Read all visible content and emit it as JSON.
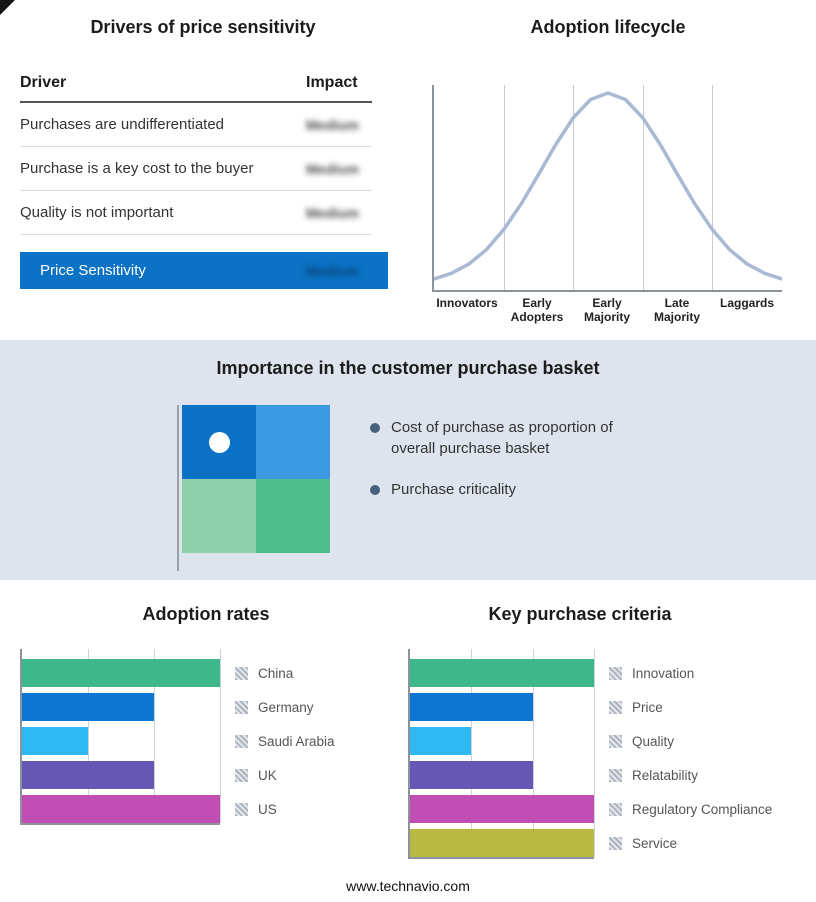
{
  "drivers": {
    "title": "Drivers of price sensitivity",
    "col_driver": "Driver",
    "col_impact": "Impact",
    "rows": [
      {
        "label": "Purchases are undifferentiated",
        "impact": "Medium"
      },
      {
        "label": "Purchase is a key cost to the buyer",
        "impact": "Medium"
      },
      {
        "label": "Quality is not important",
        "impact": "Medium"
      }
    ],
    "highlight": {
      "label": "Price Sensitivity",
      "impact": "Medium",
      "color": "#0b72c6"
    }
  },
  "basket": {
    "title": "Importance in the customer purchase basket",
    "bg_color": "#dde4ed",
    "quadrant_colors": {
      "top_left": "#0b72c6",
      "top_right": "#3b99e0",
      "bottom_left": "#90d1ab",
      "bottom_right": "#4dbd8d"
    },
    "bullets": [
      "Cost of purchase as proportion of overall purchase basket",
      "Purchase criticality"
    ]
  },
  "chart_data": [
    {
      "id": "adoption_lifecycle",
      "type": "line",
      "title": "Adoption lifecycle",
      "x_labels": [
        "Innovators",
        "Early Adopters",
        "Early Majority",
        "Late Majority",
        "Laggards"
      ],
      "color": "#a9b8d3",
      "curve_points": [
        0.031,
        0.061,
        0.109,
        0.183,
        0.288,
        0.421,
        0.575,
        0.732,
        0.871,
        0.966,
        1.0,
        0.966,
        0.871,
        0.732,
        0.575,
        0.421,
        0.288,
        0.183,
        0.109,
        0.061,
        0.031
      ],
      "note": "bell curve over five adopter phases, peak at Early Majority"
    },
    {
      "id": "adoption_rates",
      "type": "bar",
      "orientation": "horizontal",
      "title": "Adoption rates",
      "max": 3,
      "grid": true,
      "items": [
        {
          "label": "China",
          "value": 3,
          "color": "#3db88b"
        },
        {
          "label": "Germany",
          "value": 2,
          "color": "#0c76d2"
        },
        {
          "label": "Saudi Arabia",
          "value": 1,
          "color": "#30b8f1"
        },
        {
          "label": "UK",
          "value": 2,
          "color": "#6657b5"
        },
        {
          "label": "US",
          "value": 3,
          "color": "#c14fb3"
        }
      ]
    },
    {
      "id": "key_purchase_criteria",
      "type": "bar",
      "orientation": "horizontal",
      "title": "Key purchase criteria",
      "max": 3,
      "grid": true,
      "items": [
        {
          "label": "Innovation",
          "value": 3,
          "color": "#3db88b"
        },
        {
          "label": "Price",
          "value": 2,
          "color": "#0c76d2"
        },
        {
          "label": "Quality",
          "value": 1,
          "color": "#30b8f1"
        },
        {
          "label": "Relatability",
          "value": 2,
          "color": "#6657b5"
        },
        {
          "label": "Regulatory Compliance",
          "value": 3,
          "color": "#c14fb3"
        },
        {
          "label": "Service",
          "value": 3,
          "color": "#b8ba43"
        }
      ]
    }
  ],
  "footer": {
    "url": "www.technavio.com"
  }
}
